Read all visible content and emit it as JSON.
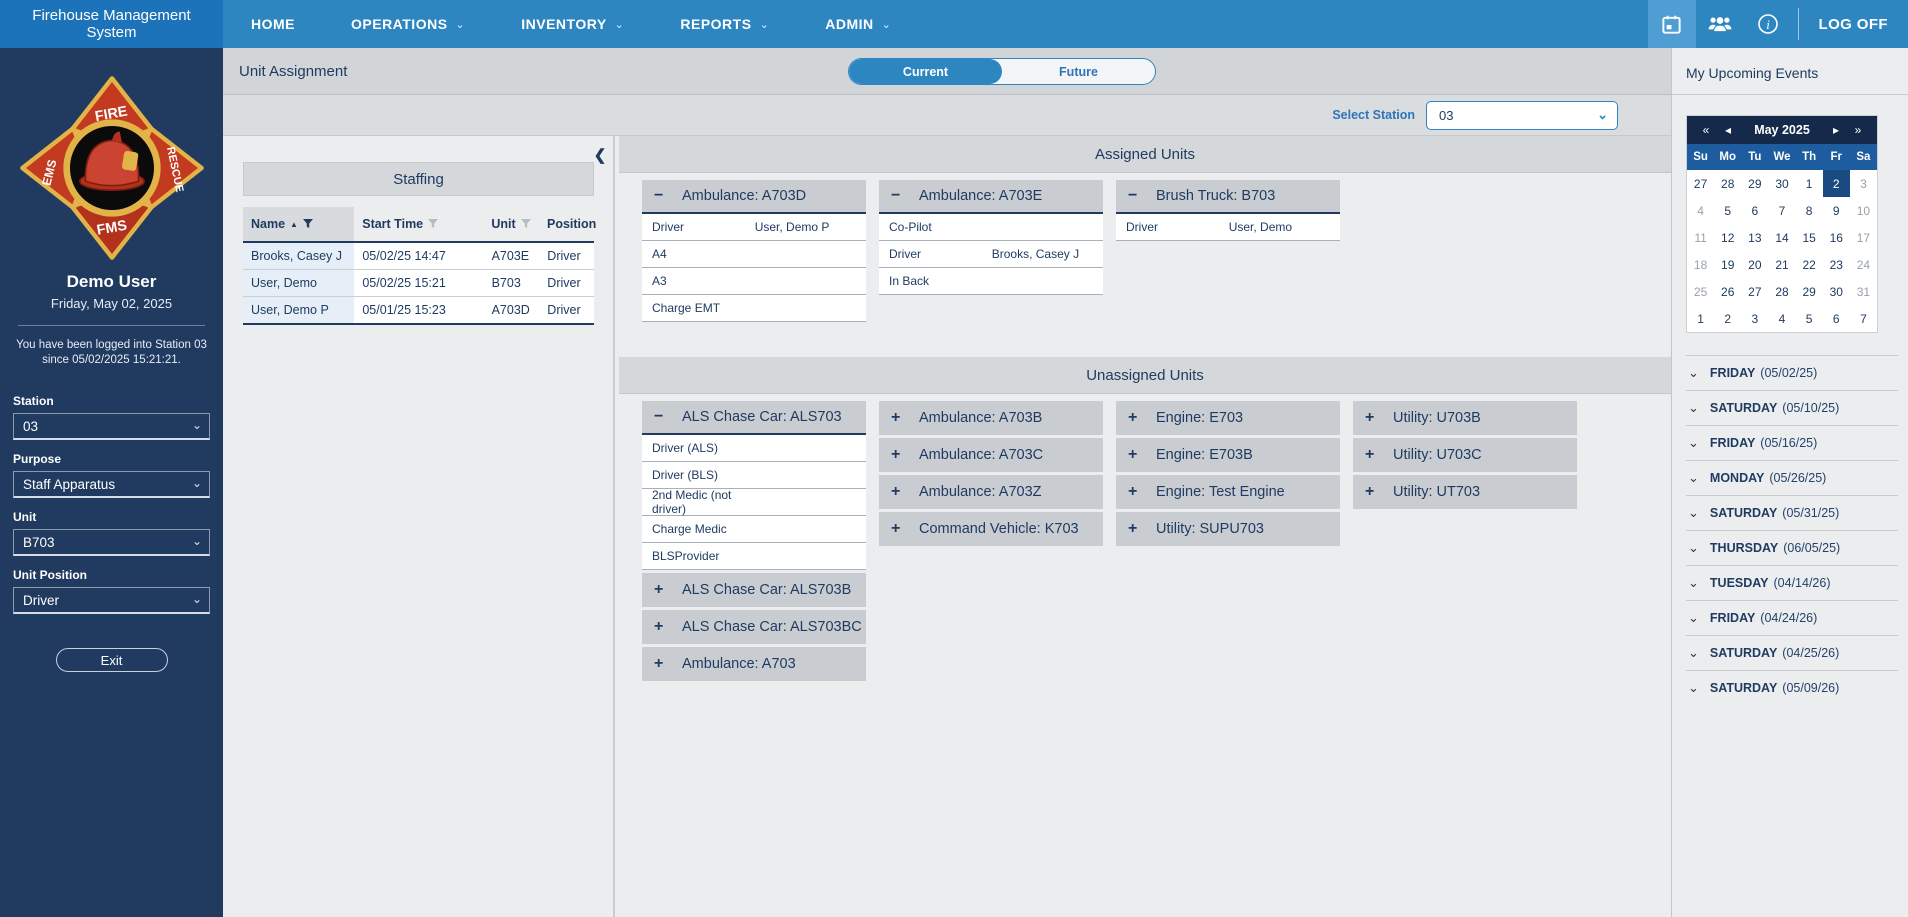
{
  "navbar": {
    "brand": "Firehouse Management System",
    "items": [
      {
        "label": "HOME",
        "dropdown": false
      },
      {
        "label": "OPERATIONS",
        "dropdown": true
      },
      {
        "label": "INVENTORY",
        "dropdown": true
      },
      {
        "label": "REPORTS",
        "dropdown": true
      },
      {
        "label": "ADMIN",
        "dropdown": true
      }
    ],
    "logoff_label": "LOG OFF"
  },
  "sidebar": {
    "emblem": {
      "top": "FIRE",
      "left": "EMS",
      "right": "RESCUE",
      "bottom": "FMS"
    },
    "user_name": "Demo User",
    "date": "Friday, May 02, 2025",
    "login_message": "You have been logged into Station 03 since 05/02/2025 15:21:21.",
    "fields": [
      {
        "label": "Station",
        "value": "03"
      },
      {
        "label": "Purpose",
        "value": "Staff Apparatus"
      },
      {
        "label": "Unit",
        "value": "B703"
      },
      {
        "label": "Unit Position",
        "value": "Driver"
      }
    ],
    "exit_label": "Exit"
  },
  "main": {
    "title": "Unit Assignment",
    "toggle": {
      "options": [
        "Current",
        "Future"
      ],
      "selected": "Current"
    },
    "select_station": {
      "label": "Select Station",
      "value": "03"
    },
    "staffing": {
      "title": "Staffing",
      "columns": [
        "Name",
        "Start Time",
        "Unit",
        "Position"
      ],
      "rows": [
        [
          "Brooks, Casey J",
          "05/02/25 14:47",
          "A703E",
          "Driver"
        ],
        [
          "User, Demo",
          "05/02/25 15:21",
          "B703",
          "Driver"
        ],
        [
          "User, Demo P",
          "05/01/25 15:23",
          "A703D",
          "Driver"
        ]
      ]
    },
    "assigned": {
      "title": "Assigned Units",
      "cards": [
        {
          "title": "Ambulance: A703D",
          "expanded": true,
          "rows": [
            {
              "position": "Driver",
              "person": "User, Demo P"
            },
            {
              "position": "A4"
            },
            {
              "position": "A3"
            },
            {
              "position": "Charge EMT"
            }
          ]
        },
        {
          "title": "Ambulance: A703E",
          "expanded": true,
          "rows": [
            {
              "position": "Co-Pilot"
            },
            {
              "position": "Driver",
              "person": "Brooks, Casey J"
            },
            {
              "position": "In Back"
            }
          ]
        },
        {
          "title": "Brush Truck: B703",
          "expanded": true,
          "rows": [
            {
              "position": "Driver",
              "person": "User, Demo"
            }
          ]
        }
      ]
    },
    "unassigned": {
      "title": "Unassigned Units",
      "columns": [
        [
          {
            "title": "ALS Chase Car: ALS703",
            "expanded": true,
            "rows": [
              {
                "position": "Driver (ALS)"
              },
              {
                "position": "Driver (BLS)"
              },
              {
                "position": "2nd Medic (not driver)"
              },
              {
                "position": "Charge Medic"
              },
              {
                "position": "BLSProvider"
              }
            ]
          },
          {
            "title": "ALS Chase Car: ALS703B",
            "expanded": false
          },
          {
            "title": "ALS Chase Car: ALS703BC",
            "expanded": false
          },
          {
            "title": "Ambulance: A703",
            "expanded": false
          }
        ],
        [
          {
            "title": "Ambulance: A703B",
            "expanded": false
          },
          {
            "title": "Ambulance: A703C",
            "expanded": false
          },
          {
            "title": "Ambulance: A703Z",
            "expanded": false
          },
          {
            "title": "Command Vehicle: K703",
            "expanded": false
          }
        ],
        [
          {
            "title": "Engine: E703",
            "expanded": false
          },
          {
            "title": "Engine: E703B",
            "expanded": false
          },
          {
            "title": "Engine: Test Engine",
            "expanded": false
          },
          {
            "title": "Utility: SUPU703",
            "expanded": false
          }
        ],
        [
          {
            "title": "Utility: U703B",
            "expanded": false
          },
          {
            "title": "Utility: U703C",
            "expanded": false
          },
          {
            "title": "Utility: UT703",
            "expanded": false
          }
        ]
      ]
    }
  },
  "events_panel": {
    "title": "My Upcoming Events",
    "calendar": {
      "month_label": "May 2025",
      "dow": [
        "Su",
        "Mo",
        "Tu",
        "We",
        "Th",
        "Fr",
        "Sa"
      ],
      "days": [
        {
          "t": "27"
        },
        {
          "t": "28"
        },
        {
          "t": "29"
        },
        {
          "t": "30"
        },
        {
          "t": "1"
        },
        {
          "t": "2",
          "selected": true
        },
        {
          "t": "3",
          "muted": true
        },
        {
          "t": "4",
          "muted": true
        },
        {
          "t": "5"
        },
        {
          "t": "6"
        },
        {
          "t": "7"
        },
        {
          "t": "8"
        },
        {
          "t": "9"
        },
        {
          "t": "10",
          "muted": true
        },
        {
          "t": "11",
          "muted": true
        },
        {
          "t": "12"
        },
        {
          "t": "13"
        },
        {
          "t": "14"
        },
        {
          "t": "15"
        },
        {
          "t": "16"
        },
        {
          "t": "17",
          "muted": true
        },
        {
          "t": "18",
          "muted": true
        },
        {
          "t": "19"
        },
        {
          "t": "20"
        },
        {
          "t": "21"
        },
        {
          "t": "22"
        },
        {
          "t": "23"
        },
        {
          "t": "24",
          "muted": true
        },
        {
          "t": "25",
          "muted": true
        },
        {
          "t": "26"
        },
        {
          "t": "27"
        },
        {
          "t": "28"
        },
        {
          "t": "29"
        },
        {
          "t": "30"
        },
        {
          "t": "31",
          "muted": true
        },
        {
          "t": "1"
        },
        {
          "t": "2"
        },
        {
          "t": "3"
        },
        {
          "t": "4"
        },
        {
          "t": "5"
        },
        {
          "t": "6"
        },
        {
          "t": "7"
        }
      ]
    },
    "events": [
      {
        "day": "FRIDAY",
        "date": "(05/02/25)"
      },
      {
        "day": "SATURDAY",
        "date": "(05/10/25)"
      },
      {
        "day": "FRIDAY",
        "date": "(05/16/25)"
      },
      {
        "day": "MONDAY",
        "date": "(05/26/25)"
      },
      {
        "day": "SATURDAY",
        "date": "(05/31/25)"
      },
      {
        "day": "THURSDAY",
        "date": "(06/05/25)"
      },
      {
        "day": "TUESDAY",
        "date": "(04/14/26)"
      },
      {
        "day": "FRIDAY",
        "date": "(04/24/26)"
      },
      {
        "day": "SATURDAY",
        "date": "(04/25/26)"
      },
      {
        "day": "SATURDAY",
        "date": "(05/09/26)"
      }
    ]
  },
  "icons": {
    "expand": "+",
    "collapse": "−",
    "chevron_down": "⌄",
    "chevron_left": "❮",
    "sort_asc": "▲",
    "prev_year": "«",
    "prev_month": "◂",
    "next_month": "▸",
    "next_year": "»"
  },
  "colors": {
    "navbar_blue": "#2E86C1",
    "brand_blue": "#1C73B9",
    "sidebar_navy": "#203A60",
    "text_navy": "#1F3B61",
    "accent_blue": "#2E74B8",
    "content_bg": "#ECEDEE",
    "section_bar": "#D5D8DA",
    "card_header": "#C9CDD1",
    "calendar_header": "#15294B",
    "calendar_dow": "#1D5C9E",
    "calendar_selected": "#1A4B80"
  }
}
